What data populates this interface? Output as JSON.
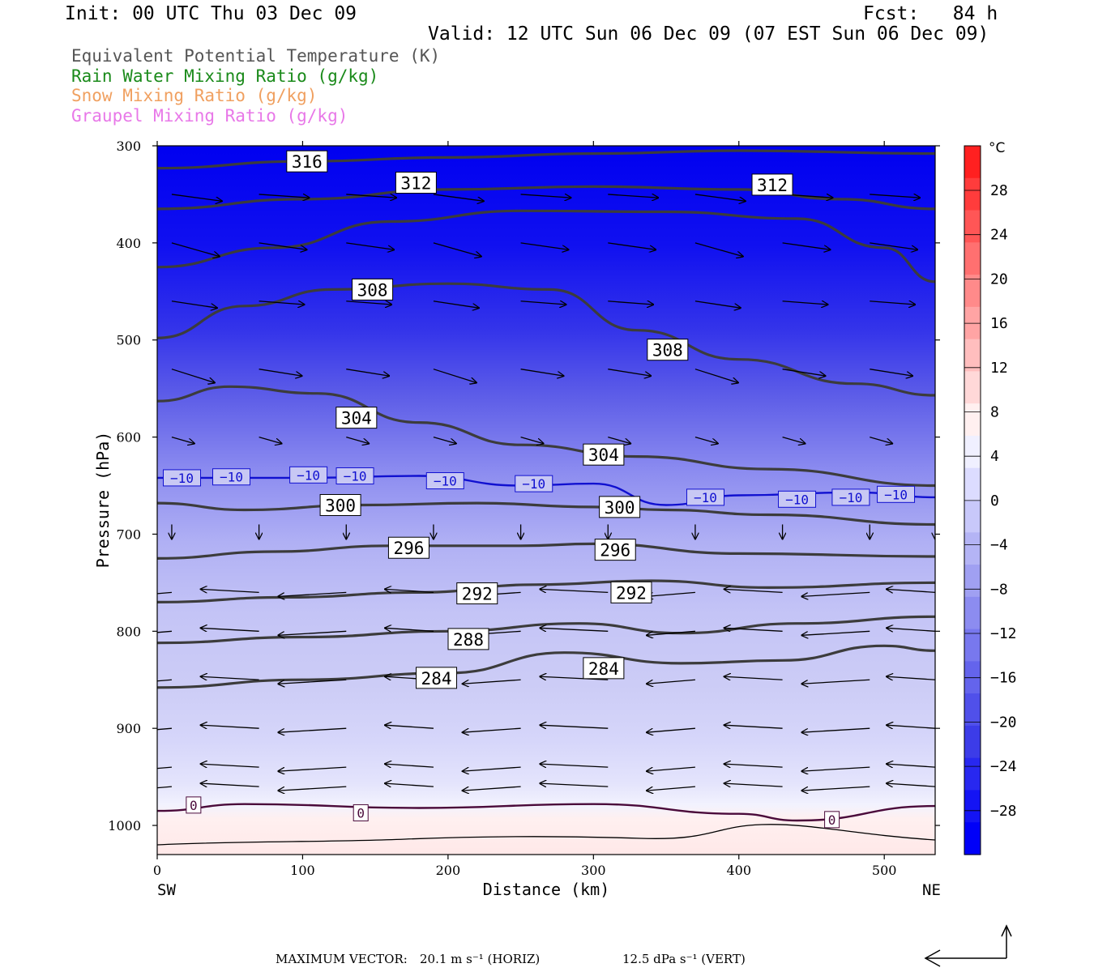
{
  "header": {
    "init": "Init: 00 UTC Thu 03 Dec 09",
    "fcst": "Fcst:   84 h",
    "valid": "Valid: 12 UTC Sun 06 Dec 09 (07 EST Sun 06 Dec 09)"
  },
  "legend": [
    {
      "text": "Equivalent Potential Temperature (K)",
      "color": "#555555"
    },
    {
      "text": "Rain Water Mixing Ratio (g/kg)",
      "color": "#1a8a1a"
    },
    {
      "text": "Snow Mixing Ratio (g/kg)",
      "color": "#f0a060"
    },
    {
      "text": "Graupel Mixing Ratio (g/kg)",
      "color": "#e878e8"
    }
  ],
  "footer": {
    "max_vector_label": "MAXIMUM VECTOR:",
    "horiz": "20.1 m s⁻¹ (HORIZ)",
    "vert": "12.5 dPa s⁻¹ (VERT)"
  },
  "chart_data": {
    "type": "heatmap",
    "title": "",
    "xlabel": "Distance (km)",
    "ylabel": "Pressure (hPa)",
    "xlim": [
      0,
      535
    ],
    "ylim": [
      1030,
      300
    ],
    "x_ticks": [
      0,
      100,
      200,
      300,
      400,
      500
    ],
    "y_ticks": [
      300,
      400,
      500,
      600,
      700,
      800,
      900,
      1000
    ],
    "x_end_labels": {
      "left": "SW",
      "right": "NE"
    },
    "colorbar": {
      "unit": "°C",
      "ticks": [
        28,
        24,
        20,
        16,
        12,
        8,
        4,
        0,
        -4,
        -8,
        -12,
        -16,
        -20,
        -24,
        -28
      ],
      "colors_top_to_bottom": [
        "#ff2020",
        "#ff3c3c",
        "#ff5656",
        "#ff7070",
        "#ff8a8a",
        "#ffa4a4",
        "#ffbebe",
        "#ffd8d8",
        "#fff0f0",
        "#f0f0ff",
        "#dcdcff",
        "#c8c8fa",
        "#b4b4f5",
        "#a0a0f2",
        "#8c8cf0",
        "#7878ee",
        "#6464ec",
        "#5050ea",
        "#3c3ce8",
        "#2828f0",
        "#1414f4",
        "#0000f8"
      ]
    },
    "theta_e_contours": [
      {
        "value": 316,
        "points": [
          [
            0,
            323
          ],
          [
            100,
            316
          ],
          [
            200,
            312
          ],
          [
            300,
            308
          ],
          [
            400,
            305
          ],
          [
            535,
            308
          ]
        ]
      },
      {
        "value": 312,
        "points": [
          [
            0,
            365
          ],
          [
            100,
            355
          ],
          [
            200,
            345
          ],
          [
            300,
            342
          ],
          [
            400,
            345
          ],
          [
            470,
            355
          ],
          [
            535,
            365
          ]
        ]
      },
      {
        "value": 312,
        "points": [
          [
            0,
            425
          ],
          [
            80,
            405
          ],
          [
            160,
            378
          ],
          [
            250,
            367
          ],
          [
            350,
            368
          ],
          [
            440,
            375
          ],
          [
            500,
            405
          ],
          [
            535,
            440
          ]
        ]
      },
      {
        "value": 308,
        "points": [
          [
            0,
            498
          ],
          [
            60,
            465
          ],
          [
            120,
            448
          ],
          [
            200,
            442
          ],
          [
            270,
            448
          ],
          [
            330,
            490
          ],
          [
            400,
            520
          ],
          [
            480,
            545
          ],
          [
            535,
            557
          ]
        ]
      },
      {
        "value": 304,
        "points": [
          [
            0,
            563
          ],
          [
            50,
            548
          ],
          [
            110,
            555
          ],
          [
            180,
            585
          ],
          [
            250,
            608
          ],
          [
            330,
            620
          ],
          [
            420,
            633
          ],
          [
            535,
            650
          ]
        ]
      },
      {
        "value": 300,
        "points": [
          [
            0,
            668
          ],
          [
            60,
            675
          ],
          [
            140,
            670
          ],
          [
            220,
            668
          ],
          [
            300,
            672
          ],
          [
            350,
            675
          ],
          [
            420,
            680
          ],
          [
            535,
            690
          ]
        ]
      },
      {
        "value": 296,
        "points": [
          [
            0,
            725
          ],
          [
            80,
            718
          ],
          [
            160,
            712
          ],
          [
            250,
            712
          ],
          [
            300,
            710
          ],
          [
            400,
            720
          ],
          [
            535,
            723
          ]
        ]
      },
      {
        "value": 292,
        "points": [
          [
            0,
            770
          ],
          [
            90,
            765
          ],
          [
            180,
            760
          ],
          [
            260,
            752
          ],
          [
            340,
            748
          ],
          [
            420,
            755
          ],
          [
            535,
            750
          ]
        ]
      },
      {
        "value": 288,
        "points": [
          [
            0,
            812
          ],
          [
            100,
            806
          ],
          [
            200,
            800
          ],
          [
            290,
            792
          ],
          [
            360,
            802
          ],
          [
            440,
            792
          ],
          [
            535,
            785
          ]
        ]
      },
      {
        "value": 284,
        "points": [
          [
            0,
            858
          ],
          [
            100,
            850
          ],
          [
            200,
            843
          ],
          [
            280,
            822
          ],
          [
            360,
            833
          ],
          [
            430,
            830
          ],
          [
            500,
            815
          ],
          [
            535,
            820
          ]
        ]
      }
    ],
    "temperature_contours": [
      {
        "value": -10,
        "points": [
          [
            0,
            642
          ],
          [
            100,
            642
          ],
          [
            180,
            640
          ],
          [
            250,
            650
          ],
          [
            300,
            648
          ],
          [
            350,
            670
          ],
          [
            400,
            660
          ],
          [
            480,
            657
          ],
          [
            535,
            662
          ]
        ]
      },
      {
        "value": 0,
        "points": [
          [
            0,
            985
          ],
          [
            60,
            978
          ],
          [
            180,
            982
          ],
          [
            300,
            978
          ],
          [
            400,
            988
          ],
          [
            440,
            995
          ],
          [
            535,
            980
          ]
        ]
      }
    ],
    "contour_labels": [
      {
        "text": "316",
        "x": 103,
        "p": 316
      },
      {
        "text": "312",
        "x": 178,
        "p": 338
      },
      {
        "text": "312",
        "x": 423,
        "p": 340
      },
      {
        "text": "308",
        "x": 148,
        "p": 448
      },
      {
        "text": "308",
        "x": 351,
        "p": 510
      },
      {
        "text": "304",
        "x": 137,
        "p": 580
      },
      {
        "text": "304",
        "x": 307,
        "p": 618
      },
      {
        "text": "300",
        "x": 126,
        "p": 670
      },
      {
        "text": "300",
        "x": 318,
        "p": 672
      },
      {
        "text": "296",
        "x": 173,
        "p": 714
      },
      {
        "text": "296",
        "x": 315,
        "p": 716
      },
      {
        "text": "292",
        "x": 220,
        "p": 761
      },
      {
        "text": "292",
        "x": 326,
        "p": 760
      },
      {
        "text": "288",
        "x": 214,
        "p": 808
      },
      {
        "text": "284",
        "x": 192,
        "p": 848
      },
      {
        "text": "284",
        "x": 307,
        "p": 838
      }
    ],
    "temperature_labels": [
      {
        "text": "−10",
        "x": 17,
        "p": 642
      },
      {
        "text": "−10",
        "x": 51,
        "p": 641
      },
      {
        "text": "−10",
        "x": 104,
        "p": 639
      },
      {
        "text": "−10",
        "x": 136,
        "p": 640
      },
      {
        "text": "−10",
        "x": 198,
        "p": 645
      },
      {
        "text": "−10",
        "x": 259,
        "p": 648
      },
      {
        "text": "−10",
        "x": 377,
        "p": 662
      },
      {
        "text": "−10",
        "x": 440,
        "p": 664
      },
      {
        "text": "−10",
        "x": 477,
        "p": 662
      },
      {
        "text": "−10",
        "x": 508,
        "p": 659
      },
      {
        "text": "0",
        "x": 25,
        "p": 979
      },
      {
        "text": "0",
        "x": 140,
        "p": 987
      },
      {
        "text": "0",
        "x": 464,
        "p": 994
      }
    ]
  }
}
